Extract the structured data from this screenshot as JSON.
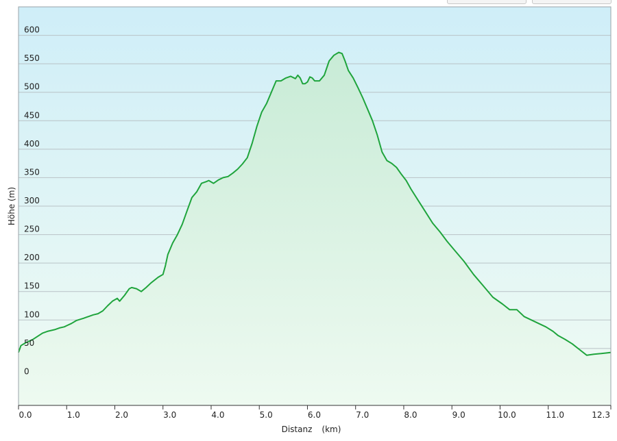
{
  "chart_data": {
    "type": "area",
    "title": "",
    "xlabel": "Distanz",
    "xunit": "(km)",
    "ylabel": "Höhe (m)",
    "xlim": [
      0,
      12.3
    ],
    "ylim": [
      -50,
      650
    ],
    "x_ticks": [
      "0.0",
      "1.0",
      "2.0",
      "3.0",
      "4.0",
      "5.0",
      "6.0",
      "7.0",
      "8.0",
      "9.0",
      "10.0",
      "11.0",
      "12.3"
    ],
    "y_ticks": [
      "0",
      "50",
      "100",
      "150",
      "200",
      "250",
      "300",
      "350",
      "400",
      "450",
      "500",
      "550",
      "600"
    ],
    "grid": true,
    "legend": "none",
    "colors": {
      "line": "#1fa43c",
      "bg_top": "#cfeef8",
      "bg_bottom": "#f0fbf3",
      "fill_top": "#c8ebd6",
      "fill_bottom": "#eefaf1",
      "grid": "#b9c2c6",
      "axis": "#333333"
    },
    "series": [
      {
        "x": [
          0.0,
          0.05,
          0.15,
          0.3,
          0.5,
          0.6,
          0.75,
          0.85,
          0.95,
          1.0,
          1.1,
          1.2,
          1.35,
          1.45,
          1.55,
          1.65,
          1.75,
          1.85,
          1.95,
          2.05,
          2.1,
          2.2,
          2.3,
          2.35,
          2.45,
          2.55,
          2.65,
          2.75,
          2.9,
          3.0,
          3.05,
          3.1,
          3.15,
          3.2,
          3.3,
          3.4,
          3.5,
          3.6,
          3.7,
          3.8,
          3.9,
          3.95,
          4.05,
          4.15,
          4.25,
          4.35,
          4.45,
          4.55,
          4.65,
          4.75,
          4.85,
          4.95,
          5.05,
          5.15,
          5.25,
          5.35,
          5.45,
          5.55,
          5.65,
          5.75,
          5.8,
          5.85,
          5.9,
          5.95,
          6.0,
          6.05,
          6.1,
          6.15,
          6.25,
          6.35,
          6.45,
          6.55,
          6.65,
          6.72,
          6.78,
          6.85,
          6.95,
          7.05,
          7.15,
          7.25,
          7.35,
          7.45,
          7.55,
          7.65,
          7.75,
          7.85,
          7.95,
          8.05,
          8.15,
          8.3,
          8.45,
          8.6,
          8.75,
          8.9,
          9.05,
          9.25,
          9.45,
          9.65,
          9.85,
          10.05,
          10.2,
          10.35,
          10.5,
          10.65,
          10.8,
          10.95,
          11.1,
          11.2,
          11.35,
          11.5,
          11.65,
          11.8,
          11.95,
          12.1,
          12.2,
          12.3
        ],
        "y": [
          43,
          55,
          60,
          66,
          77,
          80,
          83,
          86,
          88,
          90,
          94,
          99,
          103,
          106,
          109,
          111,
          116,
          125,
          133,
          138,
          133,
          143,
          155,
          157,
          155,
          150,
          157,
          165,
          175,
          180,
          195,
          215,
          225,
          235,
          250,
          268,
          292,
          315,
          325,
          340,
          343,
          345,
          340,
          346,
          350,
          352,
          358,
          365,
          374,
          385,
          410,
          440,
          465,
          480,
          500,
          520,
          520,
          525,
          528,
          524,
          530,
          525,
          515,
          515,
          518,
          527,
          525,
          520,
          520,
          530,
          555,
          565,
          570,
          568,
          555,
          538,
          525,
          508,
          490,
          470,
          450,
          425,
          395,
          380,
          375,
          368,
          356,
          345,
          330,
          310,
          290,
          270,
          255,
          238,
          223,
          203,
          180,
          160,
          140,
          128,
          118,
          118,
          106,
          100,
          94,
          88,
          80,
          73,
          66,
          58,
          48,
          38,
          40,
          41,
          42,
          43
        ]
      }
    ]
  }
}
